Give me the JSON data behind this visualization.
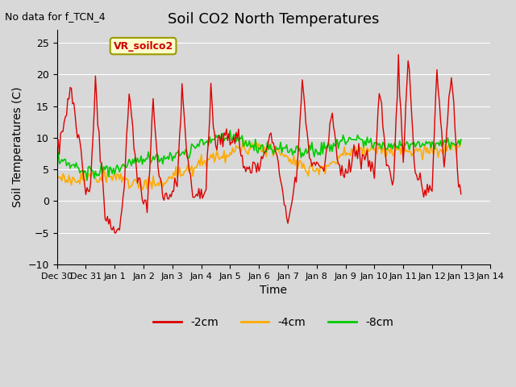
{
  "title": "Soil CO2 North Temperatures",
  "xlabel": "Time",
  "ylabel": "Soil Temperatures (C)",
  "annotation": "No data for f_TCN_4",
  "box_label": "VR_soilco2",
  "ylim": [
    -10,
    27
  ],
  "yticks": [
    -10,
    -5,
    0,
    5,
    10,
    15,
    20,
    25
  ],
  "color_2cm": "#dd0000",
  "color_4cm": "#ffaa00",
  "color_8cm": "#00cc00",
  "legend_labels": [
    "-2cm",
    "-4cm",
    "-8cm"
  ],
  "bg_color": "#e8e8e8",
  "plot_bg": "#d8d8d8",
  "n_points": 336,
  "x_tick_labels": [
    "Dec 30",
    "Dec 31",
    "Jan 1",
    "Jan 2",
    "Jan 3",
    "Jan 4",
    "Jan 5",
    "Jan 6",
    "Jan 7",
    "Jan 8",
    "Jan 9",
    "Jan 10",
    "Jan 11",
    "Jan 12",
    "Jan 13",
    "Jan 14"
  ],
  "x_tick_positions": [
    0,
    24,
    48,
    72,
    96,
    120,
    144,
    168,
    192,
    216,
    240,
    264,
    288,
    312,
    336,
    360
  ]
}
